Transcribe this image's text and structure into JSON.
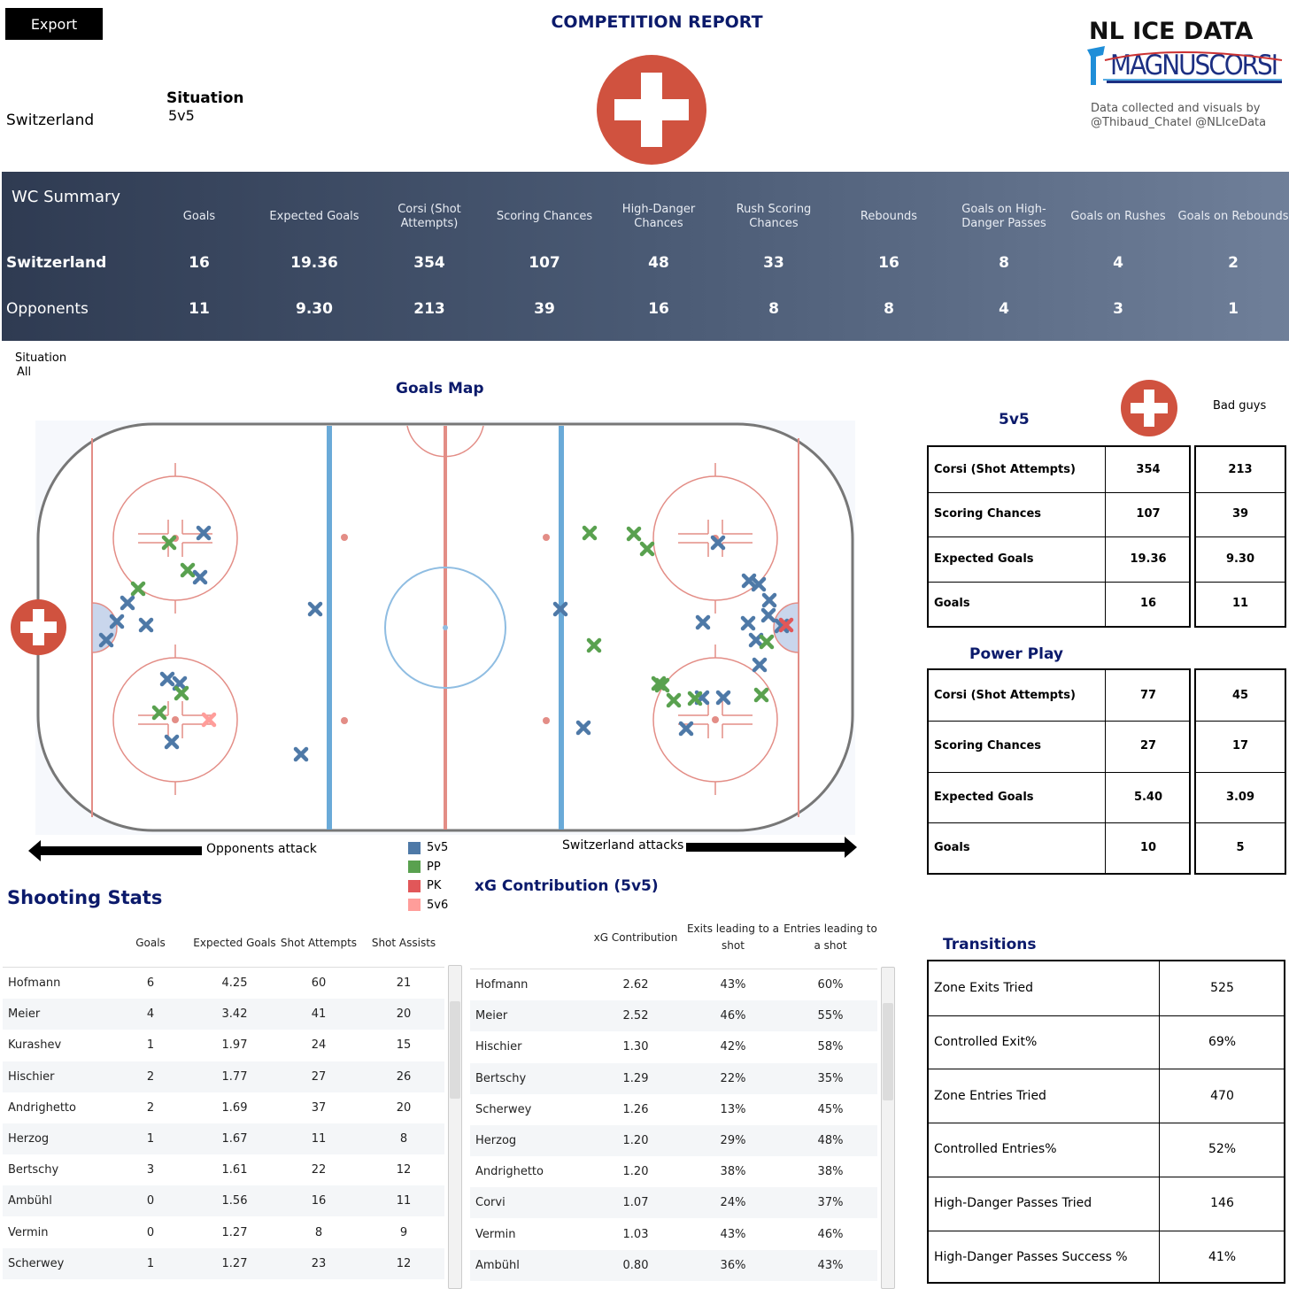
{
  "header": {
    "export_label": "Export",
    "title": "COMPETITION REPORT",
    "team": "Switzerland",
    "situation_label": "Situation",
    "situation_value": "5v5",
    "brand_line1": "NL ICE DATA",
    "brand_line2": "MAGNUSCORSI",
    "credit_line1": "Data collected and visuals by",
    "credit_line2": "@Thibaud_Chatel @NLIceData",
    "flag_color": "#d0523f"
  },
  "summary": {
    "title": "WC Summary",
    "columns": [
      "Goals",
      "Expected Goals",
      "Corsi (Shot Attempts)",
      "Scoring Chances",
      "High-Danger Chances",
      "Rush Scoring Chances",
      "Rebounds",
      "Goals on High-Danger Passes",
      "Goals on Rushes",
      "Goals on Rebounds"
    ],
    "rows": [
      {
        "label": "Switzerland",
        "values": [
          "16",
          "19.36",
          "354",
          "107",
          "48",
          "33",
          "16",
          "8",
          "4",
          "2"
        ]
      },
      {
        "label": "Opponents",
        "values": [
          "11",
          "9.30",
          "213",
          "39",
          "16",
          "8",
          "8",
          "4",
          "3",
          "1"
        ]
      }
    ]
  },
  "goals_map": {
    "situation_label": "Situation",
    "situation_value": "All",
    "title": "Goals Map",
    "opponents_attack": "Opponents attack",
    "switzerland_attacks": "Switzerland attacks",
    "legend": [
      {
        "label": "5v5",
        "color": "#4e79a7"
      },
      {
        "label": "PP",
        "color": "#59a14f"
      },
      {
        "label": "PK",
        "color": "#e15759"
      },
      {
        "label": "5v6",
        "color": "#ff9d9a"
      }
    ]
  },
  "shooting": {
    "title": "Shooting Stats",
    "columns": [
      "Goals",
      "Expected Goals",
      "Shot Attempts",
      "Shot Assists"
    ],
    "rows": [
      [
        "Hofmann",
        "6",
        "4.25",
        "60",
        "21"
      ],
      [
        "Meier",
        "4",
        "3.42",
        "41",
        "20"
      ],
      [
        "Kurashev",
        "1",
        "1.97",
        "24",
        "15"
      ],
      [
        "Hischier",
        "2",
        "1.77",
        "27",
        "26"
      ],
      [
        "Andrighetto",
        "2",
        "1.69",
        "37",
        "20"
      ],
      [
        "Herzog",
        "1",
        "1.67",
        "11",
        "8"
      ],
      [
        "Bertschy",
        "3",
        "1.61",
        "22",
        "12"
      ],
      [
        "Ambühl",
        "0",
        "1.56",
        "16",
        "11"
      ],
      [
        "Vermin",
        "0",
        "1.27",
        "8",
        "9"
      ],
      [
        "Scherwey",
        "1",
        "1.27",
        "23",
        "12"
      ]
    ]
  },
  "xg": {
    "title": "xG Contribution (5v5)",
    "columns": [
      "xG Contribution",
      "Exits leading to a shot",
      "Entries leading to a shot"
    ],
    "rows": [
      [
        "Hofmann",
        "2.62",
        "43%",
        "60%"
      ],
      [
        "Meier",
        "2.52",
        "46%",
        "55%"
      ],
      [
        "Hischier",
        "1.30",
        "42%",
        "58%"
      ],
      [
        "Bertschy",
        "1.29",
        "22%",
        "35%"
      ],
      [
        "Scherwey",
        "1.26",
        "13%",
        "45%"
      ],
      [
        "Herzog",
        "1.20",
        "29%",
        "48%"
      ],
      [
        "Andrighetto",
        "1.20",
        "38%",
        "38%"
      ],
      [
        "Corvi",
        "1.07",
        "24%",
        "37%"
      ],
      [
        "Vermin",
        "1.03",
        "43%",
        "46%"
      ],
      [
        "Ambühl",
        "0.80",
        "36%",
        "43%"
      ]
    ]
  },
  "five_v_five": {
    "title": "5v5",
    "bad_guys": "Bad guys",
    "rows": [
      {
        "label": "Corsi (Shot Attempts)",
        "ours": "354",
        "theirs": "213"
      },
      {
        "label": "Scoring Chances",
        "ours": "107",
        "theirs": "39"
      },
      {
        "label": "Expected Goals",
        "ours": "19.36",
        "theirs": "9.30"
      },
      {
        "label": "Goals",
        "ours": "16",
        "theirs": "11"
      }
    ]
  },
  "power_play": {
    "title": "Power Play",
    "rows": [
      {
        "label": "Corsi (Shot Attempts)",
        "ours": "77",
        "theirs": "45"
      },
      {
        "label": "Scoring Chances",
        "ours": "27",
        "theirs": "17"
      },
      {
        "label": "Expected Goals",
        "ours": "5.40",
        "theirs": "3.09"
      },
      {
        "label": "Goals",
        "ours": "10",
        "theirs": "5"
      }
    ]
  },
  "transitions": {
    "title": "Transitions",
    "rows": [
      {
        "label": "Zone Exits Tried",
        "value": "525"
      },
      {
        "label": "Controlled Exit%",
        "value": "69%"
      },
      {
        "label": "Zone Entries Tried",
        "value": "470"
      },
      {
        "label": "Controlled Entries%",
        "value": "52%"
      },
      {
        "label": "High-Danger Passes Tried",
        "value": "146"
      },
      {
        "label": "High-Danger Passes Success %",
        "value": "41%"
      }
    ]
  }
}
